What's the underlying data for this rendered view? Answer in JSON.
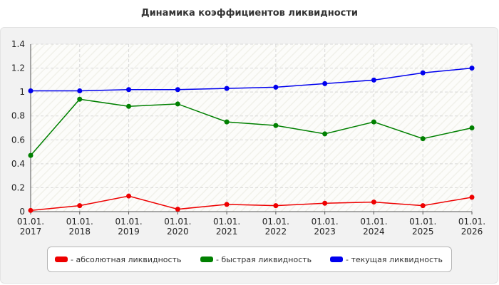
{
  "chart_data": {
    "type": "line",
    "title": "Динамика коэффициентов ликвидности",
    "categories": [
      "01.01.2017",
      "01.01.2018",
      "01.01.2019",
      "01.01.2020",
      "01.01.2021",
      "01.01.2022",
      "01.01.2023",
      "01.01.2024",
      "01.01.2025",
      "01.01.2026"
    ],
    "category_labels": [
      [
        "01.01.",
        "2017"
      ],
      [
        "01.01.",
        "2018"
      ],
      [
        "01.01.",
        "2019"
      ],
      [
        "01.01.",
        "2020"
      ],
      [
        "01.01.",
        "2021"
      ],
      [
        "01.01.",
        "2022"
      ],
      [
        "01.01.",
        "2023"
      ],
      [
        "01.01.",
        "2024"
      ],
      [
        "01.01.",
        "2025"
      ],
      [
        "01.01.",
        "2026"
      ]
    ],
    "ylim": [
      0,
      1.4
    ],
    "yticks": [
      0,
      0.2,
      0.4,
      0.6,
      0.8,
      1,
      1.2,
      1.4
    ],
    "ytick_labels": [
      "0",
      "0.2",
      "0.4",
      "0.6",
      "0.8",
      "1",
      "1.2",
      "1.4"
    ],
    "grid": true,
    "legend_position": "bottom",
    "series": [
      {
        "name": "- абсолютная ликвидность",
        "color": "#ee0000",
        "values": [
          0.01,
          0.05,
          0.13,
          0.02,
          0.06,
          0.05,
          0.07,
          0.08,
          0.05,
          0.12
        ]
      },
      {
        "name": "- быстрая ликвидность",
        "color": "#008000",
        "values": [
          0.47,
          0.94,
          0.88,
          0.9,
          0.75,
          0.72,
          0.65,
          0.75,
          0.61,
          0.7
        ]
      },
      {
        "name": "- текущая ликвидность",
        "color": "#0000ee",
        "values": [
          1.01,
          1.01,
          1.02,
          1.02,
          1.03,
          1.04,
          1.07,
          1.1,
          1.16,
          1.2
        ]
      }
    ]
  }
}
